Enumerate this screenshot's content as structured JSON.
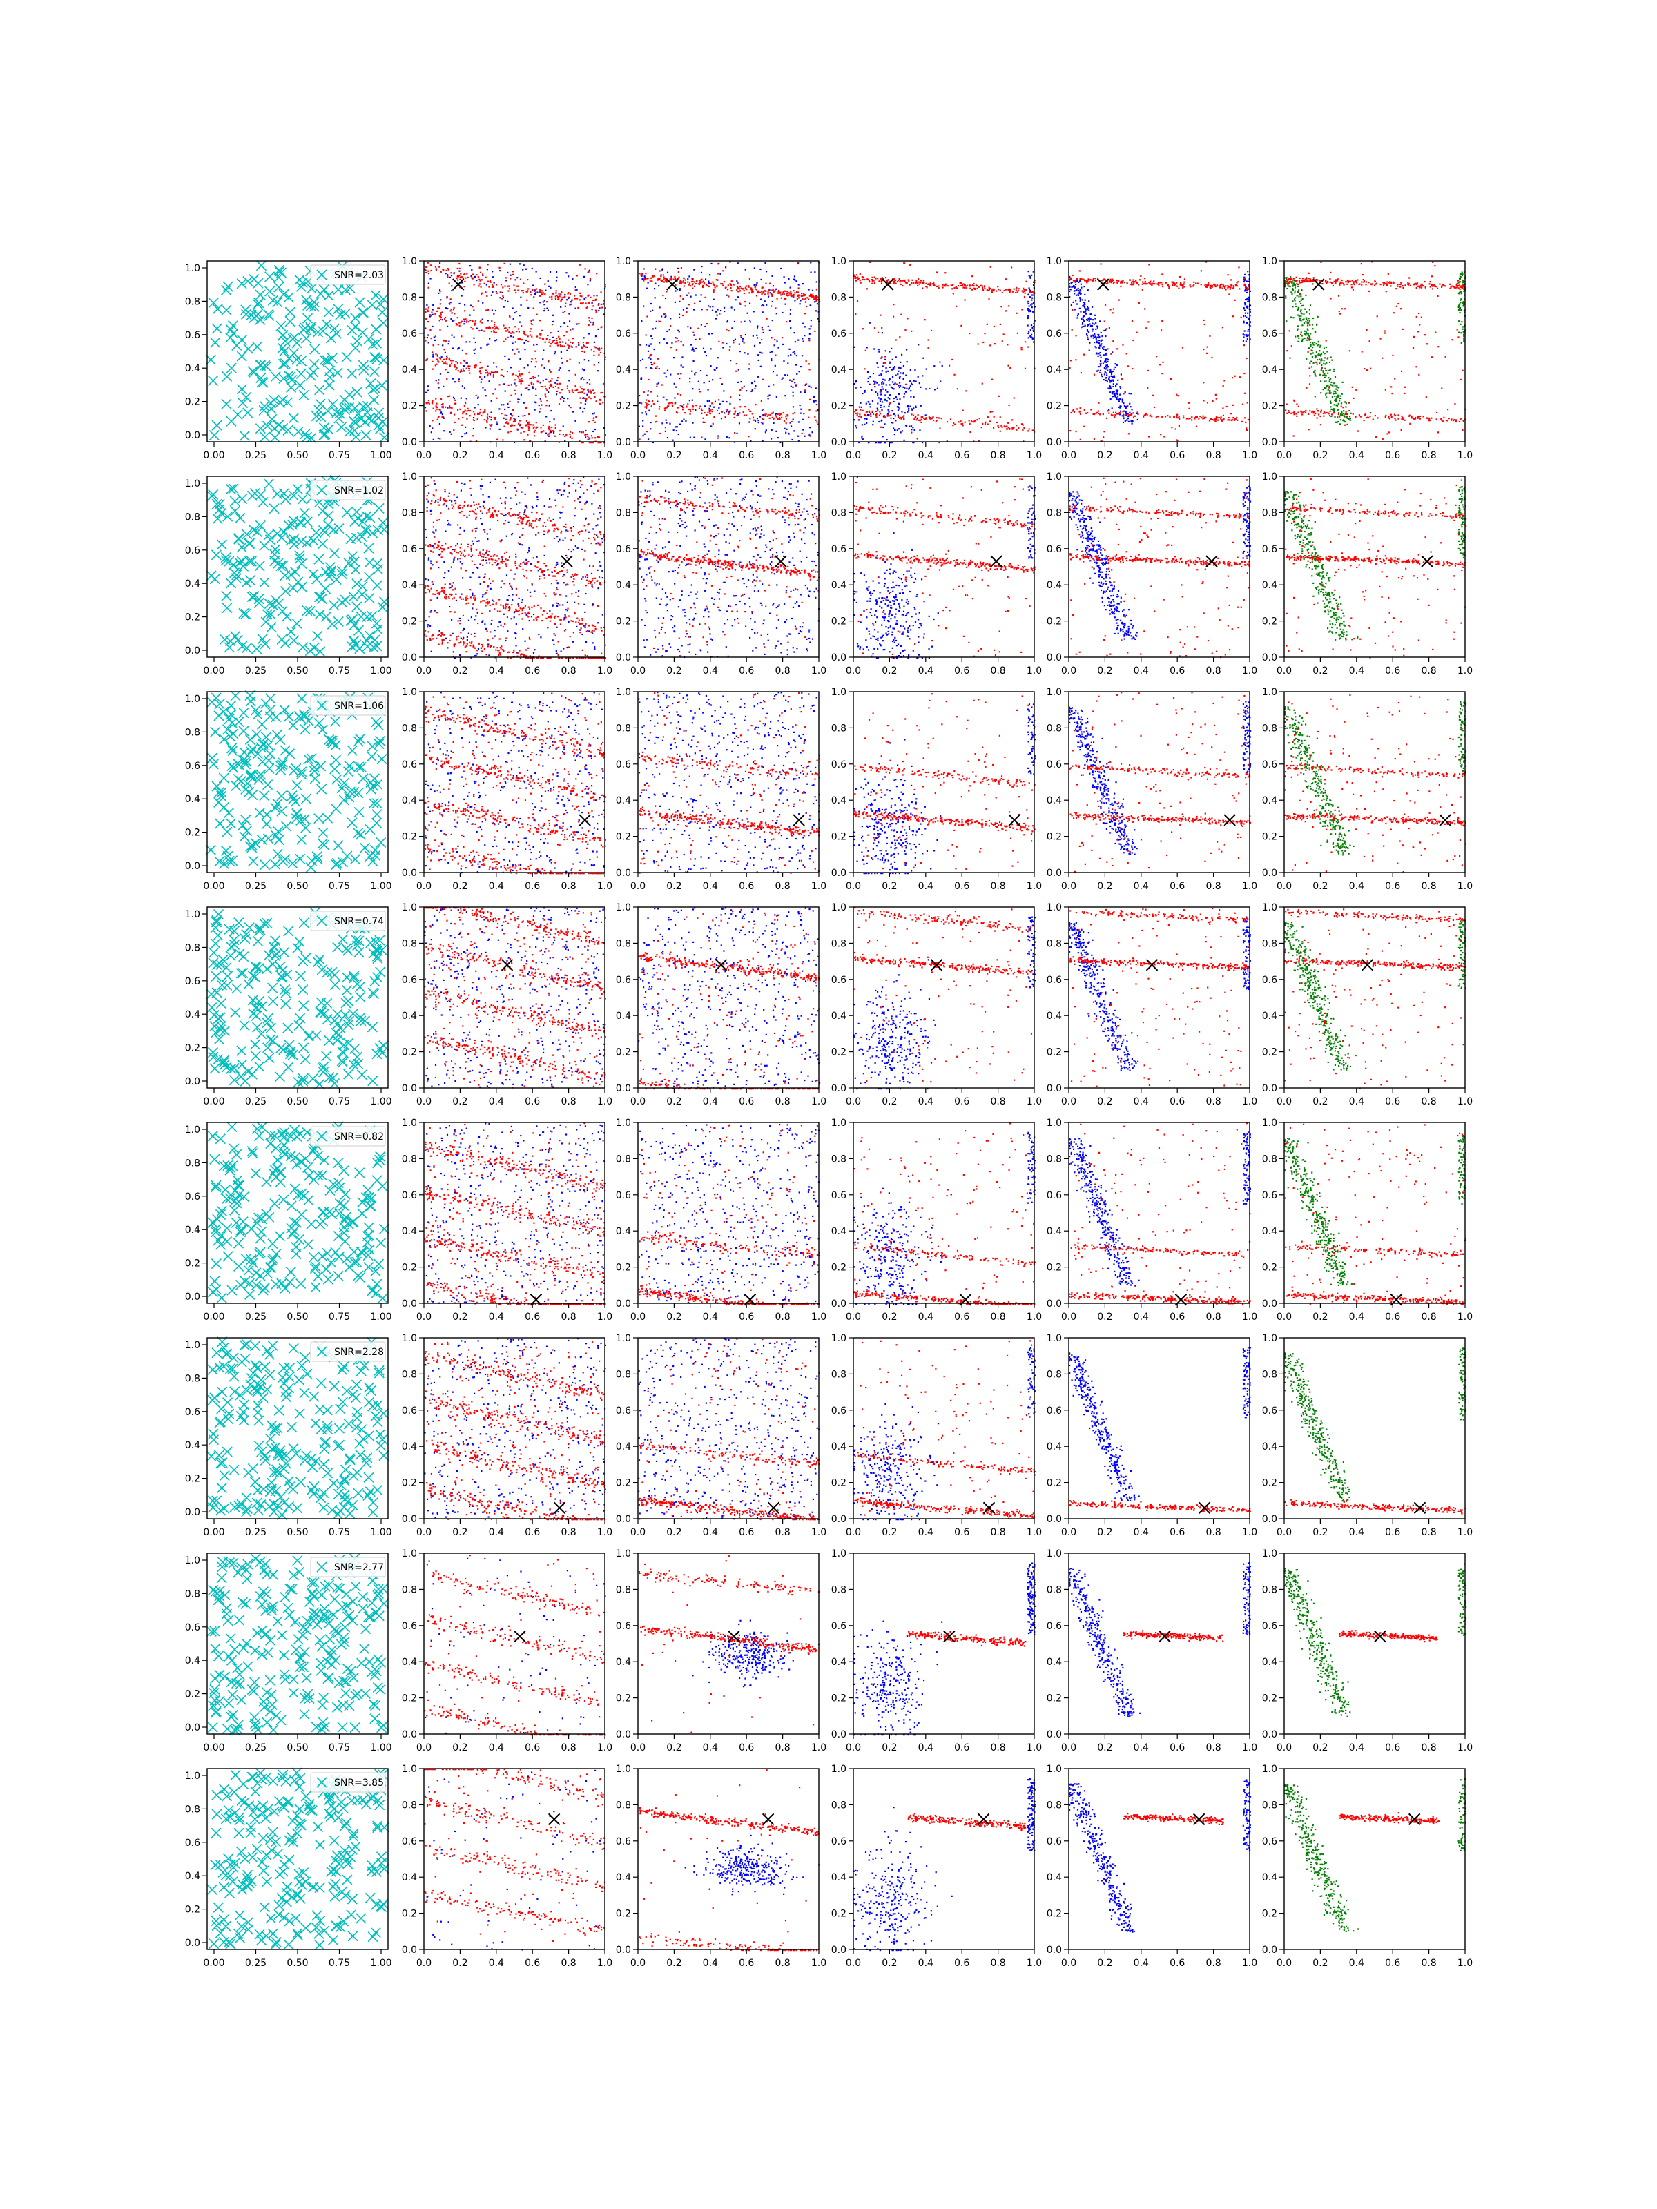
{
  "colors": {
    "cyan": "#00bfbf",
    "red": "#ff0000",
    "blue": "#0000ff",
    "green": "#008000",
    "marker": "#000000",
    "axis": "#000000"
  },
  "axis_tick_labels": {
    "first_column_x": [
      "0.00",
      "0.25",
      "0.50",
      "0.75",
      "1.00"
    ],
    "other_columns_x": [
      "0.0",
      "0.2",
      "0.4",
      "0.6",
      "0.8",
      "1.0"
    ],
    "y": [
      "0.0",
      "0.2",
      "0.4",
      "0.6",
      "0.8",
      "1.0"
    ]
  },
  "chart_data": {
    "type": "scatter",
    "layout": "8 rows x 6 columns grid of scatter panels",
    "xlim": [
      0,
      1
    ],
    "ylim": [
      0,
      1
    ],
    "grid": false,
    "legend_placement": "top-right (first column only)",
    "column_types": [
      "cyan-x-markers",
      "red-blue-points",
      "red-blue-points",
      "red-blue-points",
      "red-blue-points",
      "red-green-points"
    ],
    "rows": [
      {
        "legend": "SNR=2.03",
        "marker": [
          0.19,
          0.87
        ]
      },
      {
        "legend": "SNR=1.02",
        "marker": [
          0.79,
          0.53
        ]
      },
      {
        "legend": "SNR=1.06",
        "marker": [
          0.89,
          0.29
        ]
      },
      {
        "legend": "SNR=0.74",
        "marker": [
          0.46,
          0.68
        ]
      },
      {
        "legend": "SNR=0.82",
        "marker": [
          0.62,
          0.02
        ]
      },
      {
        "legend": "SNR=2.28",
        "marker": [
          0.75,
          0.06
        ]
      },
      {
        "legend": "SNR=2.77",
        "marker": [
          0.53,
          0.54
        ]
      },
      {
        "legend": "SNR=3.85",
        "marker": [
          0.72,
          0.72
        ]
      }
    ]
  }
}
